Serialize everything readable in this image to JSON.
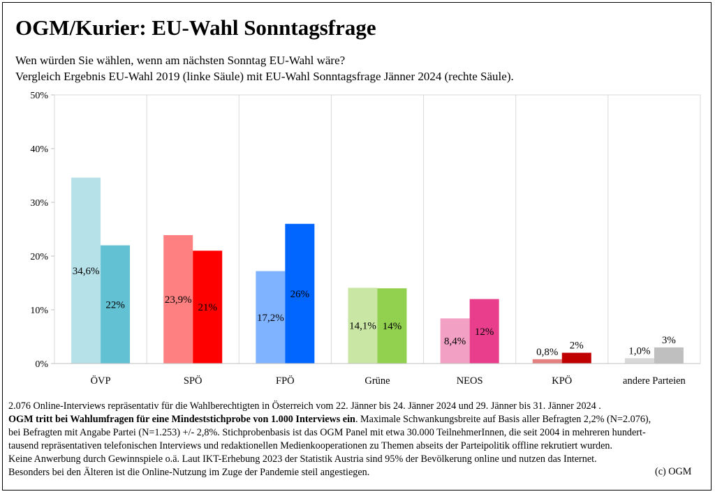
{
  "title": "OGM/Kurier: EU-Wahl Sonntagsfrage",
  "subtitle_line1": "Wen würden Sie wählen, wenn am nächsten Sonntag EU-Wahl wäre?",
  "subtitle_line2": "Vergleich Ergebnis EU-Wahl 2019 (linke Säule) mit EU-Wahl Sonntagsfrage Jänner 2024 (rechte Säule).",
  "chart_data": {
    "type": "bar",
    "categories": [
      "ÖVP",
      "SPÖ",
      "FPÖ",
      "Grüne",
      "NEOS",
      "KPÖ",
      "andere Parteien"
    ],
    "series": [
      {
        "values": [
          34.6,
          23.9,
          17.2,
          14.1,
          8.4,
          0.8,
          1.0
        ],
        "labels": [
          "34,6%",
          "23,9%",
          "17,2%",
          "14,1%",
          "8,4%",
          "0,8%",
          "1,0%"
        ],
        "colors": [
          "#b6e1e8",
          "#ff8080",
          "#80b3ff",
          "#c9e6a4",
          "#f2a0c4",
          "#e58080",
          "#d8d8d8"
        ]
      },
      {
        "values": [
          22,
          21,
          26,
          14,
          12,
          2,
          3
        ],
        "labels": [
          "22%",
          "21%",
          "26%",
          "14%",
          "12%",
          "2%",
          "3%"
        ],
        "colors": [
          "#62c2d3",
          "#ff0000",
          "#0066ff",
          "#92d050",
          "#e83e8c",
          "#c00000",
          "#bfbfbf"
        ]
      }
    ],
    "ylim": [
      0,
      50
    ],
    "yticks": [
      0,
      10,
      20,
      30,
      40,
      50
    ],
    "ytick_labels": [
      "0%",
      "10%",
      "20%",
      "30%",
      "40%",
      "50%"
    ],
    "grid": "vertical",
    "legend": "none"
  },
  "footnote": {
    "line1": "2.076 Online-Interviews repräsentativ für die Wahlberechtigten in Österreich vom 22. Jänner bis 24. Jänner 2024 und 29. Jänner bis 31. Jänner 2024 .",
    "line2_bold": "OGM tritt bei Wahlumfragen für eine Mindeststichprobe von 1.000 Interviews ein",
    "line2_rest": ". Maximale Schwankungsbreite auf Basis aller Befragten 2,2% (N=2.076),",
    "line3": "bei Befragten mit Angabe Partei (N=1.253) +/- 2,8%. Stichprobenbasis ist das OGM Panel mit etwa 30.000 TeilnehmerInnen, die seit 2004 in mehreren hundert-",
    "line4": "tausend repräsentativen telefonischen Interviews und redaktionellen Medienkooperationen zu Themen abseits der Parteipolitik offline rekrutiert wurden.",
    "line5": "Keine Anwerbung durch Gewinnspiele o.ä. Laut IKT-Erhebung 2023 der Statistik Austria sind 95% der Bevölkerung online und nutzen das Internet.",
    "line6": "Besonders bei den Älteren ist die Online-Nutzung im Zuge der Pandemie steil angestiegen.",
    "copyright": "(c) OGM"
  }
}
